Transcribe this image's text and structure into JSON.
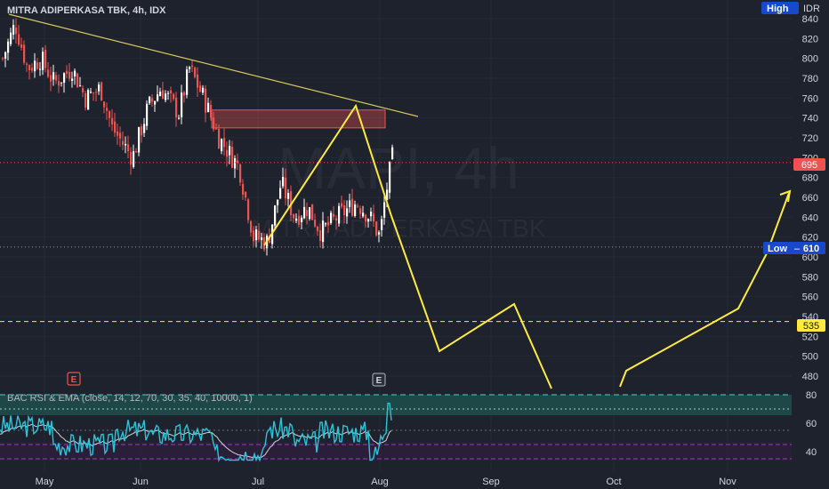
{
  "header": {
    "title": "MITRA ADIPERKASA TBK, 4h, IDX"
  },
  "watermark": {
    "symbol": "MAPI, 4h",
    "name": "MITRA ADIPERKASA TBK"
  },
  "price_axis": {
    "currency": "IDR",
    "ticks": [
      "840",
      "820",
      "800",
      "780",
      "760",
      "740",
      "720",
      "700",
      "680",
      "660",
      "640",
      "620",
      "600",
      "580",
      "560",
      "540",
      "520",
      "500",
      "480"
    ]
  },
  "badges": {
    "high_label": "High",
    "last_price": "695",
    "low_label": "Low",
    "low_value": "610",
    "support_value": "535"
  },
  "events": {
    "marker_1": "E",
    "marker_2": "E"
  },
  "indicator": {
    "title": "BAC RSI & EMA (close, 14, 12, 70, 30, 35, 40, 10000, 1)",
    "ticks": [
      "80",
      "60",
      "40"
    ]
  },
  "time_axis": {
    "labels": [
      "May",
      "Jun",
      "Jul",
      "Aug",
      "Sep",
      "Oct",
      "Nov"
    ]
  },
  "colors": {
    "background": "#1e222d",
    "up_candle": "#ffffff",
    "down_candle": "#ef5350",
    "drawing": "#ffeb3b",
    "rsi": "#26c6da",
    "overbought_zone": "#1e4d4d"
  },
  "chart_data": {
    "type": "candlestick",
    "symbol": "MAPI",
    "timeframe": "4h",
    "exchange": "IDX",
    "y_range": [
      478,
      850
    ],
    "last_price": 695,
    "period_low": 610,
    "horizontal_support": 535,
    "resistance_zone": [
      730,
      748
    ],
    "x_labels": [
      "May",
      "Jun",
      "Jul",
      "Aug",
      "Sep",
      "Oct",
      "Nov"
    ],
    "candles_approx": [
      {
        "date": "Apr",
        "close": 820
      },
      {
        "date": "May",
        "close": 790
      },
      {
        "date": "late May",
        "close": 765
      },
      {
        "date": "Jun",
        "close": 745
      },
      {
        "date": "mid Jun",
        "close": 770
      },
      {
        "date": "late Jun",
        "close": 735
      },
      {
        "date": "Jul",
        "close": 620
      },
      {
        "date": "mid Jul",
        "close": 660
      },
      {
        "date": "late Jul",
        "close": 650
      },
      {
        "date": "Aug",
        "close": 640
      },
      {
        "date": "Aug",
        "close": 695
      }
    ],
    "projection_path": [
      {
        "date": "Aug",
        "price": 660
      },
      {
        "date": "mid Aug",
        "price": 507
      },
      {
        "date": "late Aug",
        "price": 553
      },
      {
        "date": "Sep",
        "price": 482
      },
      {
        "date": "Oct",
        "price": 487
      },
      {
        "date": "mid Oct",
        "price": 548
      },
      {
        "date": "Nov",
        "price": 665
      }
    ],
    "rsi_range": [
      20,
      90
    ],
    "rsi_levels": [
      80,
      70,
      35,
      30
    ],
    "rsi_last": 70
  }
}
